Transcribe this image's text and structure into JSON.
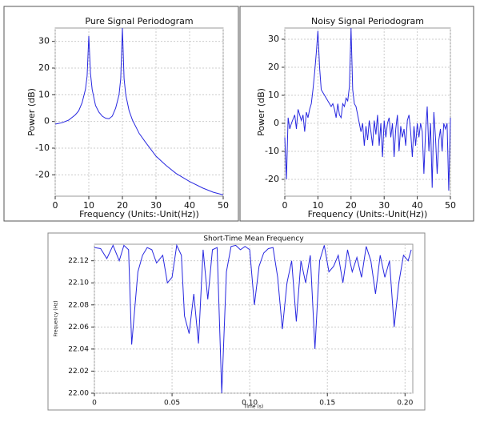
{
  "chart_data": [
    {
      "type": "line",
      "title": "Pure Signal Periodogram",
      "x_label": "Frequency (Units:-Unit(Hz))",
      "y_label": "Power (dB)",
      "x": [
        0,
        2,
        4,
        6,
        7,
        8,
        9,
        9.5,
        10,
        10.5,
        11,
        12,
        13,
        14,
        15,
        16,
        17,
        18,
        19,
        19.5,
        20,
        20.5,
        21,
        22,
        23,
        24,
        25,
        27,
        30,
        33,
        36,
        40,
        44,
        47,
        50
      ],
      "values": [
        -1,
        -0.5,
        0.5,
        2.5,
        4,
        7,
        12,
        17,
        32,
        18,
        12,
        6,
        3.5,
        2,
        1.2,
        1,
        2,
        5,
        10,
        16,
        35,
        16,
        10,
        4,
        0.5,
        -2,
        -4.5,
        -8,
        -13,
        -16.5,
        -19.5,
        -22.5,
        -25,
        -26.5,
        -27.5
      ],
      "color": "#2828e0",
      "xlim": [
        0,
        50
      ],
      "ylim": [
        -28,
        35
      ],
      "xticks": [
        0,
        10,
        20,
        30,
        40,
        50
      ],
      "yticks": [
        -20,
        -10,
        0,
        10,
        20,
        30
      ],
      "grid": true
    },
    {
      "type": "line",
      "title": "Noisy Signal Periodogram",
      "x_label": "Frequency (Units:-Unit(Hz))",
      "y_label": "Power (dB)",
      "x": [
        0,
        0.5,
        1,
        1.5,
        2,
        3,
        3.5,
        4,
        5,
        5.5,
        6,
        6.5,
        7,
        7.5,
        8,
        8.5,
        9,
        9.5,
        10,
        10.5,
        11,
        11.5,
        12,
        13,
        14,
        14.5,
        15,
        15.5,
        16,
        16.5,
        17,
        17.5,
        18,
        18.5,
        19,
        19.5,
        20,
        20.5,
        21,
        21.5,
        22,
        23,
        23.5,
        24,
        24.5,
        25,
        25.5,
        26,
        26.5,
        27,
        27.5,
        28,
        28.5,
        29,
        29.5,
        30,
        30.5,
        31,
        31.5,
        32,
        32.5,
        33,
        33.5,
        34,
        34.5,
        35,
        35.5,
        36,
        36.5,
        37,
        37.5,
        38,
        38.5,
        39,
        39.5,
        40,
        40.5,
        41,
        41.5,
        42,
        42.5,
        43,
        43.5,
        44,
        44.5,
        45,
        45.5,
        46,
        46.5,
        47,
        47.5,
        48,
        48.5,
        49,
        49.5,
        50
      ],
      "values": [
        -5,
        -20,
        2,
        -2,
        0,
        3,
        -2,
        5,
        1,
        3,
        -3,
        4,
        2,
        5,
        7,
        12,
        18,
        25,
        33,
        20,
        12,
        11,
        10,
        8,
        6,
        7,
        5,
        2,
        7,
        3,
        2,
        7,
        6,
        9,
        8,
        13,
        34,
        12,
        7,
        6,
        3,
        -3,
        0,
        -8,
        -1,
        -6,
        1,
        -3,
        -8,
        1,
        -4,
        3,
        -8,
        0,
        -12,
        1,
        -5,
        0,
        2,
        -5,
        0,
        -12,
        -2,
        3,
        -10,
        -1,
        -5,
        -2,
        -8,
        1,
        3,
        -3,
        -12,
        -1,
        -8,
        0,
        -5,
        0,
        -3,
        -18,
        -3,
        6,
        -10,
        0,
        -23,
        4,
        -5,
        -18,
        -6,
        -2,
        -10,
        0,
        -2,
        0,
        -24,
        2
      ],
      "color": "#2828e0",
      "xlim": [
        0,
        50
      ],
      "ylim": [
        -26,
        34
      ],
      "xticks": [
        0,
        10,
        20,
        30,
        40,
        50
      ],
      "yticks": [
        -20,
        -10,
        0,
        10,
        20,
        30
      ],
      "grid": true
    },
    {
      "type": "line",
      "title": "Short-Time Mean Frequency",
      "x_label": "Time (s)",
      "y_label": "Frequency (Hz)",
      "x": [
        0,
        0.004,
        0.008,
        0.012,
        0.016,
        0.019,
        0.022,
        0.024,
        0.028,
        0.031,
        0.034,
        0.037,
        0.04,
        0.044,
        0.047,
        0.05,
        0.053,
        0.056,
        0.058,
        0.061,
        0.064,
        0.067,
        0.07,
        0.073,
        0.076,
        0.079,
        0.082,
        0.085,
        0.088,
        0.091,
        0.094,
        0.097,
        0.1,
        0.103,
        0.106,
        0.109,
        0.112,
        0.115,
        0.118,
        0.121,
        0.124,
        0.127,
        0.13,
        0.133,
        0.136,
        0.139,
        0.142,
        0.145,
        0.148,
        0.151,
        0.154,
        0.157,
        0.16,
        0.163,
        0.166,
        0.169,
        0.172,
        0.175,
        0.178,
        0.181,
        0.184,
        0.187,
        0.19,
        0.193,
        0.196,
        0.199,
        0.202,
        0.204
      ],
      "values": [
        22.132,
        22.131,
        22.122,
        22.134,
        22.12,
        22.134,
        22.13,
        22.044,
        22.11,
        22.125,
        22.132,
        22.13,
        22.118,
        22.125,
        22.1,
        22.105,
        22.134,
        22.125,
        22.07,
        22.054,
        22.09,
        22.045,
        22.13,
        22.085,
        22.13,
        22.132,
        22.0,
        22.11,
        22.133,
        22.134,
        22.13,
        22.133,
        22.13,
        22.08,
        22.115,
        22.127,
        22.131,
        22.132,
        22.105,
        22.058,
        22.1,
        22.12,
        22.065,
        22.12,
        22.1,
        22.125,
        22.04,
        22.12,
        22.134,
        22.11,
        22.115,
        22.125,
        22.1,
        22.13,
        22.11,
        22.123,
        22.105,
        22.133,
        22.12,
        22.09,
        22.125,
        22.105,
        22.12,
        22.06,
        22.1,
        22.125,
        22.12,
        22.13
      ],
      "color": "#2828e0",
      "xlim": [
        0,
        0.205
      ],
      "ylim": [
        22.0,
        22.135
      ],
      "xticks": [
        0,
        0.05,
        {
          "value": 0.1,
          "label": "0.10"
        },
        0.15,
        {
          "value": 0.2,
          "label": "0.20"
        }
      ],
      "yticks": [
        {
          "value": 22,
          "label": "22.00"
        },
        22.02,
        22.04,
        22.06,
        22.08,
        {
          "value": 22.1,
          "label": "22.10"
        },
        22.12
      ],
      "grid": true
    }
  ]
}
